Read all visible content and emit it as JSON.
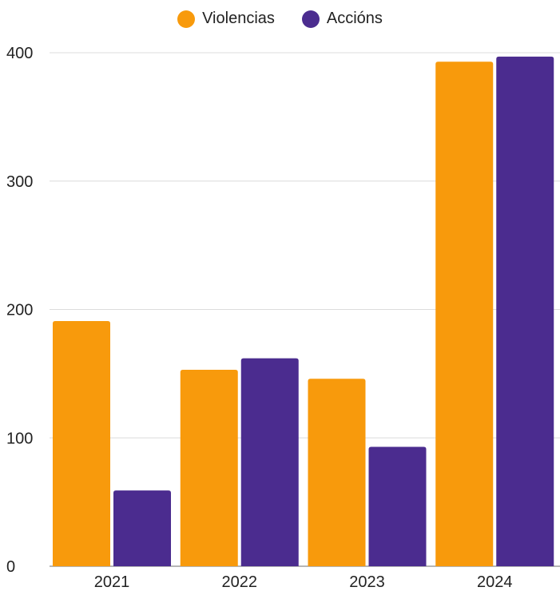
{
  "chart_data": {
    "type": "bar",
    "categories": [
      "2021",
      "2022",
      "2023",
      "2024"
    ],
    "series": [
      {
        "name": "Violencias",
        "color": "#F89A0C",
        "values": [
          191,
          153,
          146,
          393
        ]
      },
      {
        "name": "Accións",
        "color": "#4B2C8F",
        "values": [
          59,
          162,
          93,
          397
        ]
      }
    ],
    "ylim": [
      0,
      400
    ],
    "yticks": [
      "0",
      "100",
      "200",
      "300",
      "400"
    ],
    "grid": true,
    "legend": "top-center"
  }
}
